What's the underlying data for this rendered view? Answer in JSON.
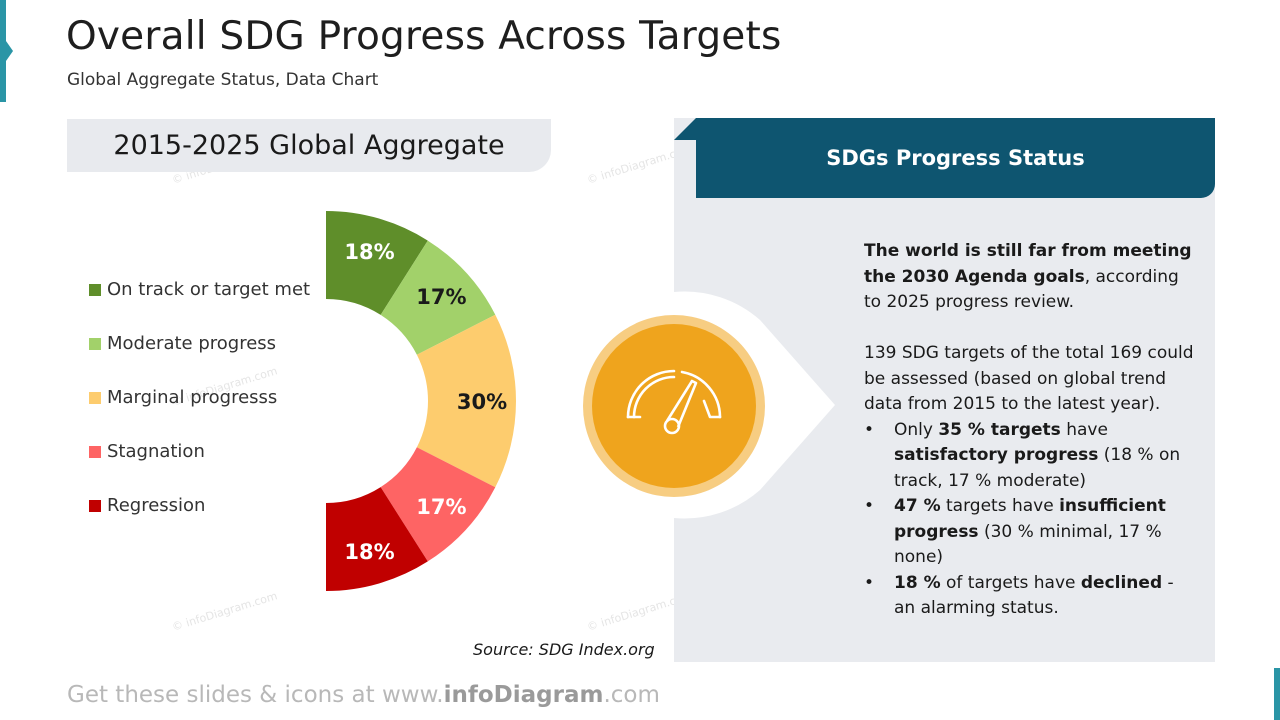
{
  "header": {
    "title": "Overall SDG Progress Across Targets",
    "subtitle": "Global Aggregate Status, Data Chart"
  },
  "aggregate_tab": {
    "label": "2015-2025 Global Aggregate"
  },
  "chart_data": {
    "type": "pie",
    "shape": "half-donut",
    "categories": [
      "On track or target met",
      "Moderate progress",
      "Marginal progresss",
      "Stagnation",
      "Regression"
    ],
    "values": [
      18,
      17,
      30,
      17,
      18
    ],
    "data_labels": [
      "18%",
      "17%",
      "30%",
      "17%",
      "18%"
    ],
    "colors": [
      "#5f8e2a",
      "#a2d16a",
      "#fdcc6e",
      "#fe6464",
      "#c00000"
    ],
    "legend_placement": "left"
  },
  "status_panel": {
    "title": "SDGs Progress Status",
    "intro": {
      "bold": "The world is still far from meeting the 2030 Agenda goals",
      "rest": ", according to 2025 progress review."
    },
    "paragraph": "139 SDG targets of the total 169 could be assessed (based on global trend data from 2015 to the latest year).",
    "bullets": [
      {
        "p1": "Only ",
        "b1": "35 % targets",
        "p2": " have ",
        "b2": "satisfactory progress",
        "p3": " (18 % on track, 17 % moderate)"
      },
      {
        "p1": "",
        "b1": "47 %",
        "p2": " targets have ",
        "b2": "insufficient progress",
        "p3": " (30 % minimal, 17 % none)"
      },
      {
        "p1": "",
        "b1": "18 %",
        "p2": " of targets have ",
        "b2": "declined",
        "p3": " - an alarming status."
      }
    ]
  },
  "icons": {
    "gauge": "speedometer-icon"
  },
  "source": "Source: SDG Index.org",
  "footer": {
    "pre": "Get these slides & icons at www.",
    "brand": "infoDiagram",
    "post": ".com"
  },
  "watermark": "© infoDiagram.com"
}
